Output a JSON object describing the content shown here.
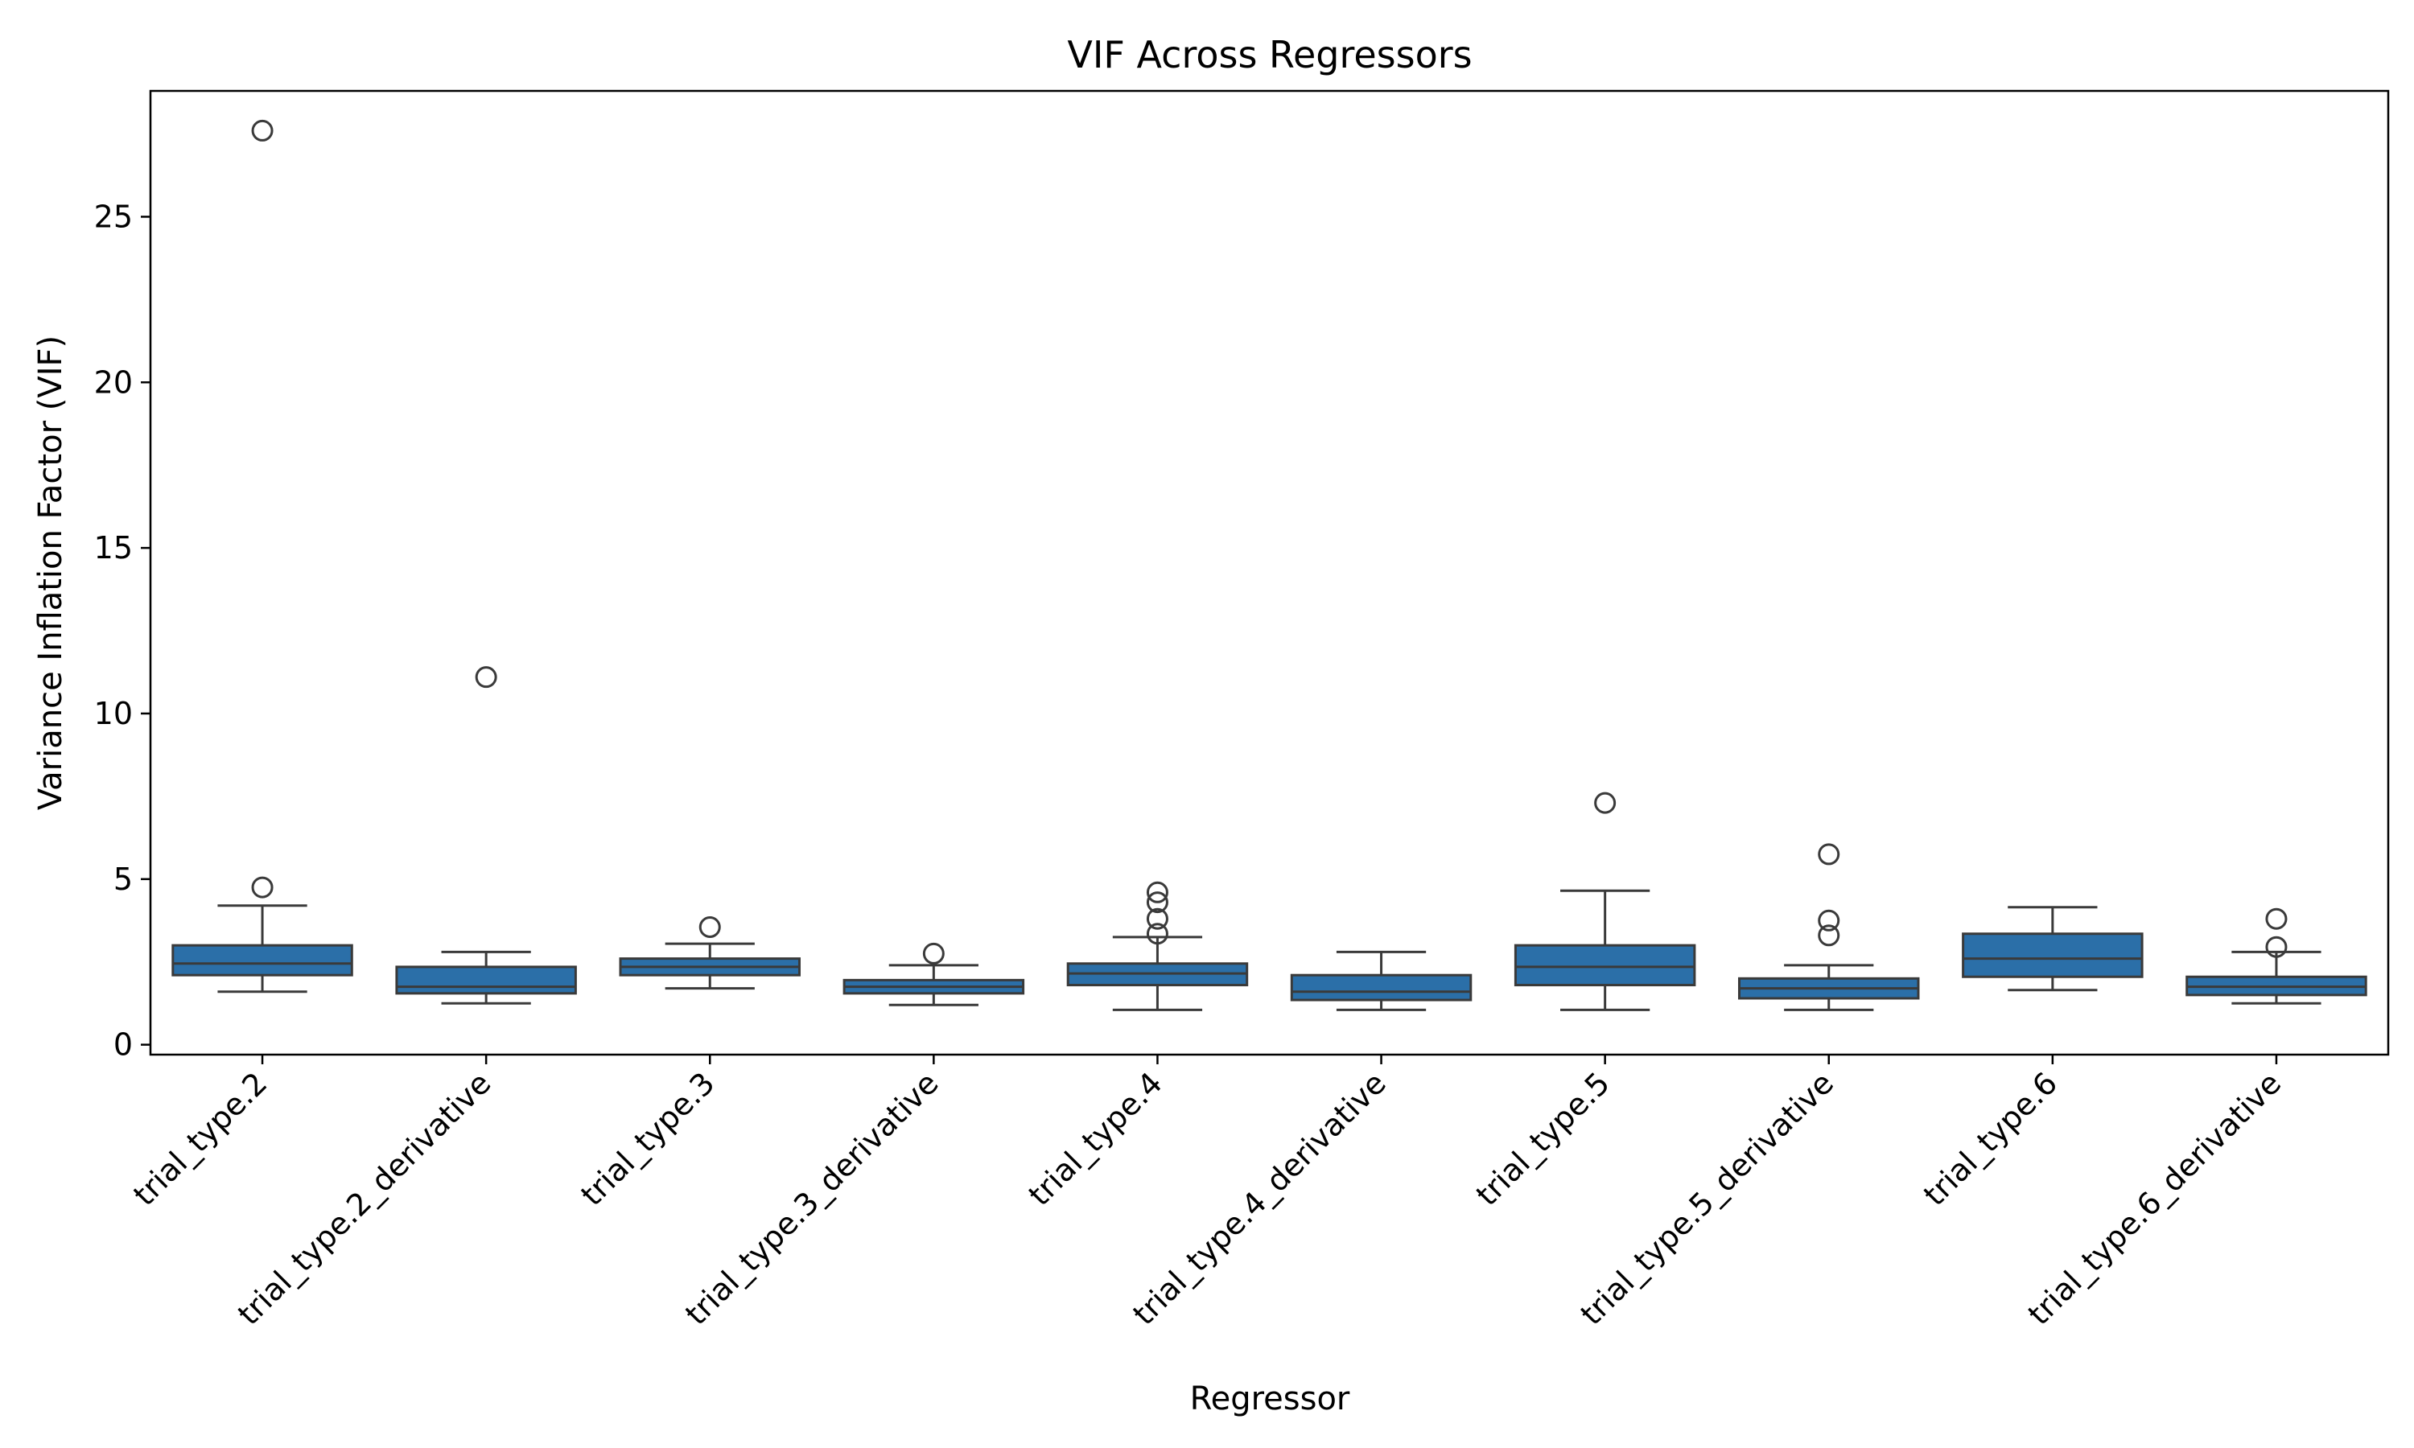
{
  "chart_data": {
    "type": "box",
    "title": "VIF Across Regressors",
    "xlabel": "Regressor",
    "ylabel": "Variance Inflation Factor (VIF)",
    "ylim": [
      -0.3,
      28.8
    ],
    "yticks": [
      0,
      5,
      10,
      15,
      20,
      25
    ],
    "grid": false,
    "legend": "none",
    "box_color": "#2b6fa8",
    "line_color": "#3a3a3a",
    "categories": [
      "trial_type.2",
      "trial_type.2_derivative",
      "trial_type.3",
      "trial_type.3_derivative",
      "trial_type.4",
      "trial_type.4_derivative",
      "trial_type.5",
      "trial_type.5_derivative",
      "trial_type.6",
      "trial_type.6_derivative"
    ],
    "boxes": [
      {
        "whisker_low": 1.6,
        "q1": 2.1,
        "median": 2.45,
        "q3": 3.0,
        "whisker_high": 4.2,
        "outliers": [
          4.75,
          27.6
        ]
      },
      {
        "whisker_low": 1.25,
        "q1": 1.55,
        "median": 1.75,
        "q3": 2.35,
        "whisker_high": 2.8,
        "outliers": [
          11.1
        ]
      },
      {
        "whisker_low": 1.7,
        "q1": 2.1,
        "median": 2.35,
        "q3": 2.6,
        "whisker_high": 3.05,
        "outliers": [
          3.55
        ]
      },
      {
        "whisker_low": 1.2,
        "q1": 1.55,
        "median": 1.75,
        "q3": 1.95,
        "whisker_high": 2.4,
        "outliers": [
          2.75
        ]
      },
      {
        "whisker_low": 1.05,
        "q1": 1.8,
        "median": 2.15,
        "q3": 2.45,
        "whisker_high": 3.25,
        "outliers": [
          3.35,
          3.8,
          4.3,
          4.6
        ]
      },
      {
        "whisker_low": 1.05,
        "q1": 1.35,
        "median": 1.6,
        "q3": 2.1,
        "whisker_high": 2.8,
        "outliers": []
      },
      {
        "whisker_low": 1.05,
        "q1": 1.8,
        "median": 2.35,
        "q3": 3.0,
        "whisker_high": 4.65,
        "outliers": [
          7.3
        ]
      },
      {
        "whisker_low": 1.05,
        "q1": 1.4,
        "median": 1.7,
        "q3": 2.0,
        "whisker_high": 2.4,
        "outliers": [
          3.3,
          3.75,
          5.75
        ]
      },
      {
        "whisker_low": 1.65,
        "q1": 2.05,
        "median": 2.6,
        "q3": 3.35,
        "whisker_high": 4.15,
        "outliers": []
      },
      {
        "whisker_low": 1.25,
        "q1": 1.5,
        "median": 1.75,
        "q3": 2.05,
        "whisker_high": 2.8,
        "outliers": [
          2.95,
          3.8
        ]
      }
    ]
  }
}
